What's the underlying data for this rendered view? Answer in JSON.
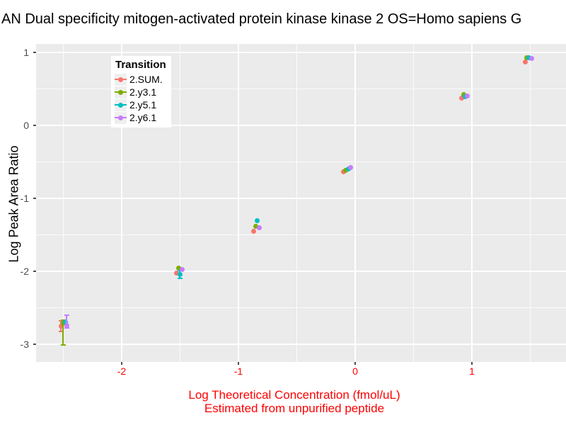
{
  "title": "AN Dual specificity mitogen-activated protein kinase kinase 2 OS=Homo sapiens G",
  "y_axis": {
    "title": "Log Peak Area Ratio",
    "tick_labels": [
      "1",
      "0",
      "-1",
      "-2",
      "-3"
    ]
  },
  "x_axis": {
    "title_line1": "Log Theoretical Concentration (fmol/uL)",
    "title_line2": "Estimated from unpurified peptide",
    "tick_labels": [
      "-2",
      "-1",
      "0",
      "1"
    ]
  },
  "legend": {
    "title": "Transition",
    "items": [
      {
        "label": "2.SUM.",
        "color": "#F8766D"
      },
      {
        "label": "2.y3.1",
        "color": "#7CAE00"
      },
      {
        "label": "2.y5.1",
        "color": "#00BFC4"
      },
      {
        "label": "2.y6.1",
        "color": "#C77CFF"
      }
    ]
  },
  "colors": {
    "panel_background": "#EBEBEB",
    "grid": "#FFFFFF",
    "axis_text_y": "#4D4D4D",
    "axis_text_x": "#FF0000",
    "x_title": "#FF0000",
    "title": "#000000"
  },
  "chart_data": {
    "type": "scatter",
    "title": "AN Dual specificity mitogen-activated protein kinase kinase 2 OS=Homo sapiens G",
    "xlabel": "Log Theoretical Concentration (fmol/uL) Estimated from unpurified peptide",
    "ylabel": "Log Peak Area Ratio",
    "grid": true,
    "legend_position": "inside-top-left",
    "x_range": [
      -2.7333,
      1.8061
    ],
    "y_range": [
      -3.2427,
      1.1165
    ],
    "x_major_ticks": [
      -2,
      -1,
      0,
      1
    ],
    "x_minor_ticks": [
      -2.5,
      -1.5,
      -0.5,
      0.5,
      1.5
    ],
    "y_major_ticks": [
      1,
      0,
      -1,
      -2,
      -3
    ],
    "y_minor_ticks": [
      0.5,
      -0.5,
      -1.5,
      -2.5
    ],
    "series": [
      {
        "name": "2.SUM.",
        "color": "#F8766D",
        "points": [
          {
            "x": -2.52,
            "y": -2.75,
            "err": [
              -2.83,
              -2.68
            ]
          },
          {
            "x": -1.53,
            "y": -2.02,
            "err": null
          },
          {
            "x": -0.87,
            "y": -1.45,
            "err": null
          },
          {
            "x": -0.1,
            "y": -0.64,
            "err": null
          },
          {
            "x": 0.91,
            "y": 0.37,
            "err": null
          },
          {
            "x": 1.46,
            "y": 0.87,
            "err": null
          }
        ]
      },
      {
        "name": "2.y3.1",
        "color": "#7CAE00",
        "points": [
          {
            "x": -2.5,
            "y": -2.71,
            "err": [
              -3.01,
              -2.67
            ]
          },
          {
            "x": -1.51,
            "y": -1.96,
            "err": null
          },
          {
            "x": -0.85,
            "y": -1.38,
            "err": null
          },
          {
            "x": -0.08,
            "y": -0.62,
            "err": null
          },
          {
            "x": 0.93,
            "y": 0.42,
            "err": null
          },
          {
            "x": 1.47,
            "y": 0.93,
            "err": null
          }
        ]
      },
      {
        "name": "2.y5.1",
        "color": "#00BFC4",
        "points": [
          {
            "x": -2.48,
            "y": -2.69,
            "err": null
          },
          {
            "x": -1.5,
            "y": -2.04,
            "err": [
              -2.1,
              -1.99
            ]
          },
          {
            "x": -0.84,
            "y": -1.31,
            "err": null
          },
          {
            "x": -0.06,
            "y": -0.6,
            "err": null
          },
          {
            "x": 0.94,
            "y": 0.39,
            "err": null
          },
          {
            "x": 1.49,
            "y": 0.93,
            "err": null
          }
        ]
      },
      {
        "name": "2.y6.1",
        "color": "#C77CFF",
        "points": [
          {
            "x": -2.47,
            "y": -2.74,
            "err": [
              -2.78,
              -2.6
            ]
          },
          {
            "x": -1.48,
            "y": -1.98,
            "err": null
          },
          {
            "x": -0.82,
            "y": -1.4,
            "err": null
          },
          {
            "x": -0.04,
            "y": -0.58,
            "err": null
          },
          {
            "x": 0.96,
            "y": 0.4,
            "err": null
          },
          {
            "x": 1.51,
            "y": 0.92,
            "err": null
          }
        ]
      }
    ]
  }
}
